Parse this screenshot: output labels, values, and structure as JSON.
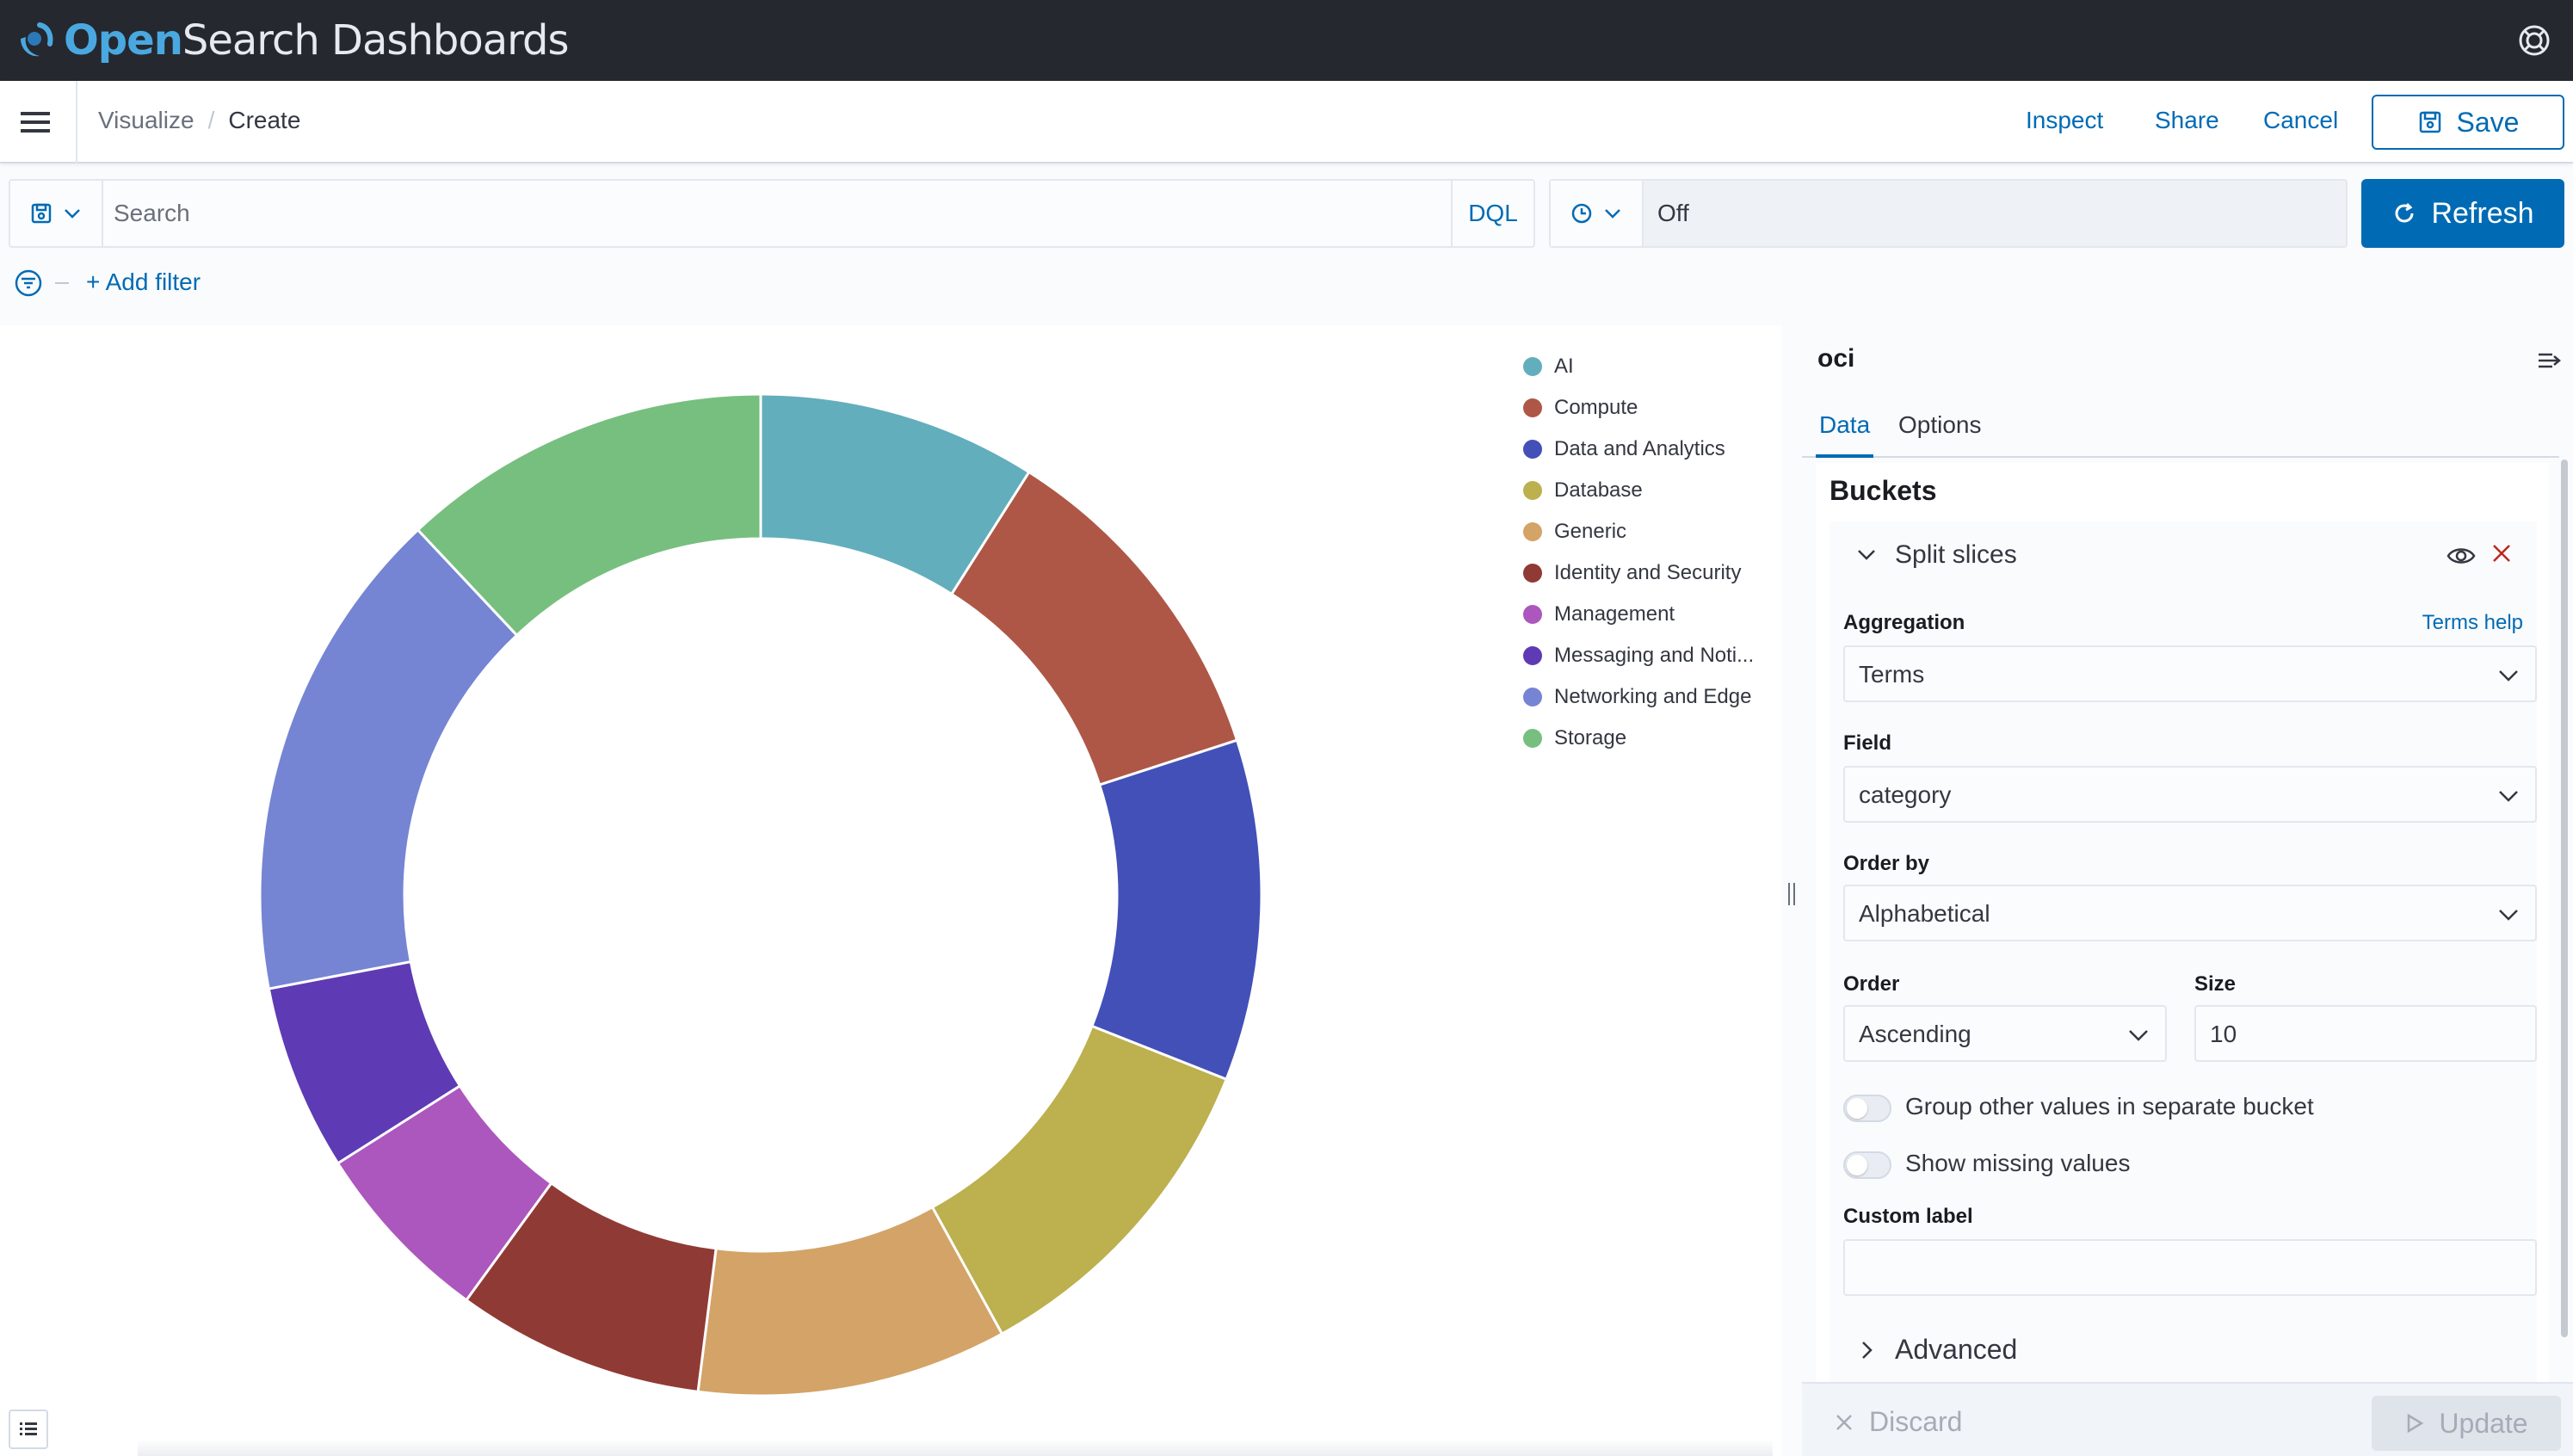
{
  "header": {
    "brand_open": "Open",
    "brand_rest": "Search Dashboards",
    "help_icon": "help-icon"
  },
  "nav": {
    "menu_icon": "hamburger-menu-icon",
    "breadcrumbs": [
      "Visualize",
      "Create"
    ],
    "breadcrumb_separator": "/",
    "inspect_label": "Inspect",
    "share_label": "Share",
    "cancel_label": "Cancel",
    "save_label": "Save"
  },
  "query": {
    "search_placeholder": "Search",
    "language_label": "DQL",
    "time_value": "Off",
    "refresh_label": "Refresh"
  },
  "filters": {
    "add_filter_label": "+ Add filter"
  },
  "chart_data": {
    "type": "pie",
    "donut": true,
    "categories": [
      "AI",
      "Compute",
      "Data and Analytics",
      "Database",
      "Generic",
      "Identity and Security",
      "Management",
      "Messaging and Noti...",
      "Networking and Edge",
      "Storage"
    ],
    "values": [
      9,
      11,
      11,
      11,
      10,
      8,
      6,
      6,
      16,
      12
    ],
    "colors": [
      "#62aebc",
      "#ae5746",
      "#4350b8",
      "#bcb04f",
      "#d3a367",
      "#903a35",
      "#ac57bd",
      "#5e3bb4",
      "#7585d3",
      "#77bf7f"
    ],
    "legend_placement": "right"
  },
  "panel": {
    "title": "oci",
    "tabs": [
      "Data",
      "Options"
    ],
    "buckets_title": "Buckets",
    "split_label": "Split slices",
    "aggregation_label": "Aggregation",
    "aggregation_help": "Terms help",
    "aggregation_value": "Terms",
    "field_label": "Field",
    "field_value": "category",
    "order_by_label": "Order by",
    "order_by_value": "Alphabetical",
    "order_label": "Order",
    "order_value": "Ascending",
    "size_label": "Size",
    "size_value": "10",
    "group_other_label": "Group other values in separate bucket",
    "show_missing_label": "Show missing values",
    "custom_label_label": "Custom label",
    "custom_label_value": "",
    "advanced_label": "Advanced",
    "discard_label": "Discard",
    "update_label": "Update"
  }
}
